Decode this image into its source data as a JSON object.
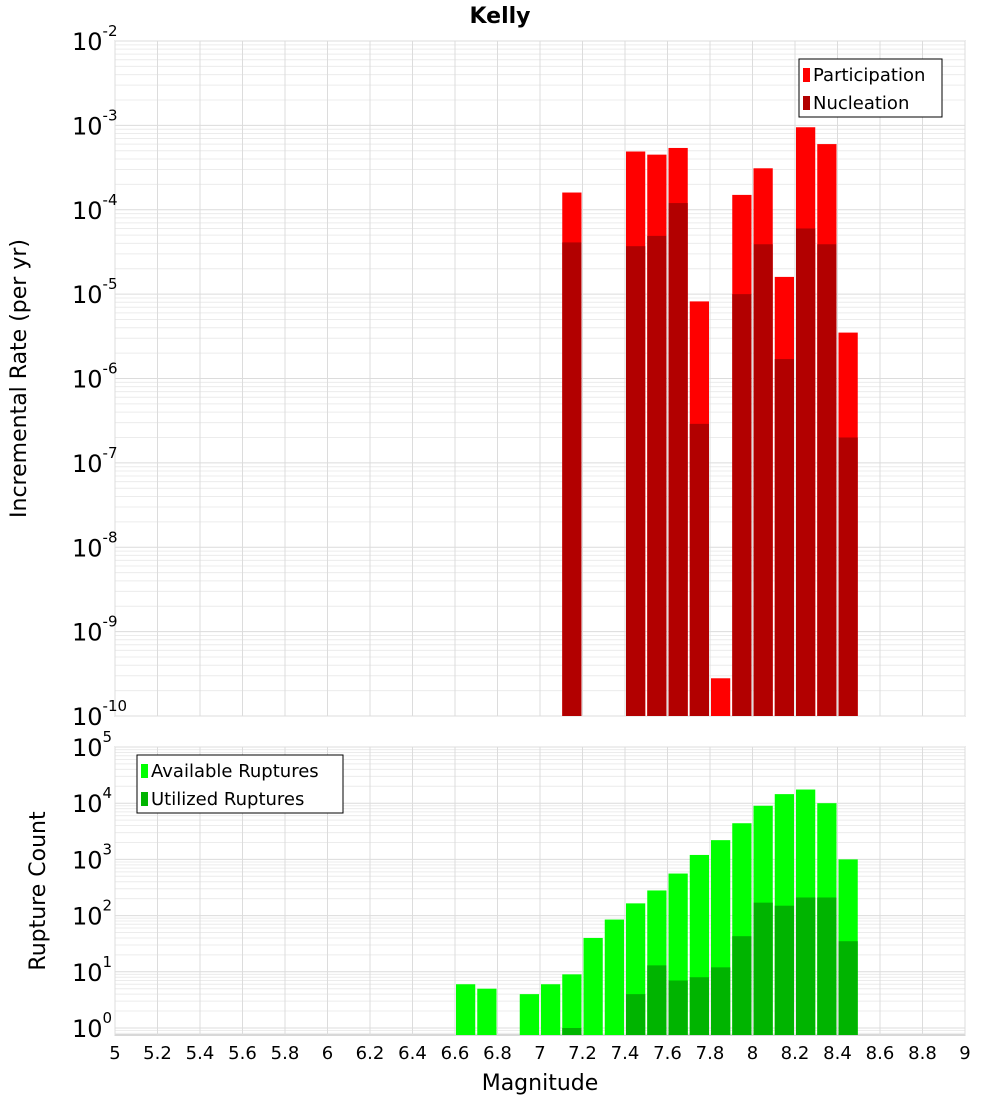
{
  "title": "Kelly",
  "x_axis": {
    "label": "Magnitude",
    "range": [
      5,
      9
    ],
    "ticks": [
      "5",
      "5.2",
      "5.4",
      "5.6",
      "5.8",
      "6",
      "6.2",
      "6.4",
      "6.6",
      "6.8",
      "7",
      "7.2",
      "7.4",
      "7.6",
      "7.8",
      "8",
      "8.2",
      "8.4",
      "8.6",
      "8.8",
      "9"
    ]
  },
  "chart_data": [
    {
      "type": "bar",
      "title": "Kelly",
      "xlabel": "Magnitude",
      "ylabel": "Incremental Rate (per yr)",
      "yscale": "log",
      "ylim": [
        1e-10,
        0.01
      ],
      "xlim": [
        5,
        9
      ],
      "y_tick_exponents": [
        -10,
        -9,
        -8,
        -7,
        -6,
        -5,
        -4,
        -3,
        -2
      ],
      "legend_position": "top-right",
      "grid": true,
      "x": [
        7.15,
        7.45,
        7.55,
        7.65,
        7.75,
        7.85,
        7.95,
        8.05,
        8.15,
        8.25,
        8.35,
        8.45
      ],
      "series": [
        {
          "name": "Participation",
          "color": "#ff0000",
          "values": [
            0.00016,
            0.00049,
            0.00045,
            0.00054,
            8.2e-06,
            2.8e-10,
            0.00015,
            0.00031,
            1.6e-05,
            0.00095,
            0.0006,
            3.5e-06
          ]
        },
        {
          "name": "Nucleation",
          "color": "#b20000",
          "values": [
            4.1e-05,
            3.7e-05,
            4.9e-05,
            0.00012,
            2.9e-07,
            null,
            1e-05,
            3.9e-05,
            1.7e-06,
            6e-05,
            3.9e-05,
            2e-07
          ]
        }
      ]
    },
    {
      "type": "bar",
      "xlabel": "Magnitude",
      "ylabel": "Rupture Count",
      "yscale": "log",
      "ylim": [
        0.75,
        100000
      ],
      "xlim": [
        5,
        9
      ],
      "y_tick_exponents": [
        0,
        1,
        2,
        3,
        4,
        5
      ],
      "legend_position": "top-left",
      "grid": true,
      "x": [
        6.65,
        6.75,
        6.95,
        7.05,
        7.15,
        7.25,
        7.35,
        7.45,
        7.55,
        7.65,
        7.75,
        7.85,
        7.95,
        8.05,
        8.15,
        8.25,
        8.35,
        8.45
      ],
      "series": [
        {
          "name": "Available Ruptures",
          "color": "#00ff00",
          "values": [
            6,
            5,
            4,
            6,
            9,
            40,
            85,
            165,
            280,
            560,
            1200,
            2200,
            4400,
            9000,
            14500,
            17500,
            10000,
            1000
          ]
        },
        {
          "name": "Utilized Ruptures",
          "color": "#00b400",
          "values": [
            null,
            null,
            null,
            null,
            1,
            null,
            null,
            4,
            13,
            7,
            8,
            12,
            43,
            170,
            150,
            210,
            210,
            35
          ]
        }
      ]
    }
  ]
}
